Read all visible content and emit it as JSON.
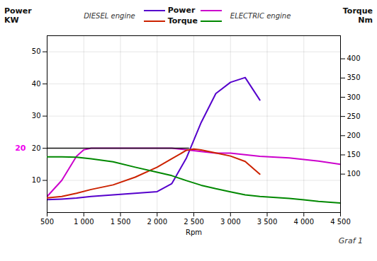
{
  "chart_data": {
    "type": "line",
    "xlabel": "Rpm",
    "ylabel": "Power\nKW",
    "y2label": "Torque\nNm",
    "xlim": [
      500,
      4500
    ],
    "xticks": [
      500,
      {
        "value": 1000,
        "label": "1 000"
      },
      {
        "value": 1500,
        "label": "1 500"
      },
      {
        "value": 2000,
        "label": "2 000"
      },
      {
        "value": 2500,
        "label": "2 500"
      },
      {
        "value": 3000,
        "label": "3 000"
      },
      {
        "value": 3500,
        "label": "3 500"
      },
      {
        "value": 4000,
        "label": "4 000"
      },
      {
        "value": 4500,
        "label": "4 500"
      }
    ],
    "ylim": [
      0,
      55
    ],
    "yticks": [
      10,
      20,
      30,
      40,
      50
    ],
    "y2lim": [
      0,
      460
    ],
    "y2ticks": [
      100,
      150,
      200,
      250,
      300,
      350,
      400
    ],
    "grid": true,
    "legend": "top",
    "series": [
      {
        "name": "Power",
        "group": "DIESEL engine",
        "color": "#5500cc",
        "axis": "y",
        "x": [
          500,
          700,
          900,
          1100,
          1400,
          1700,
          2000,
          2200,
          2400,
          2600,
          2800,
          3000,
          3200,
          3400
        ],
        "values": [
          4.0,
          4.2,
          4.5,
          5.0,
          5.5,
          6.0,
          6.5,
          9.0,
          17.0,
          28.0,
          37.0,
          40.5,
          42.0,
          35.0
        ]
      },
      {
        "name": "Torque",
        "group": "DIESEL engine",
        "color": "#cc2200",
        "axis": "y2",
        "x": [
          500,
          700,
          900,
          1100,
          1400,
          1700,
          2000,
          2200,
          2400,
          2500,
          2600,
          2800,
          3000,
          3200,
          3400
        ],
        "values": [
          38,
          42,
          50,
          60,
          72,
          92,
          118,
          140,
          162,
          165,
          163,
          155,
          147,
          133,
          100
        ]
      },
      {
        "name": "Power",
        "group": "ELECTRIC engine",
        "color": "#cc00cc",
        "axis": "y",
        "x": [
          500,
          700,
          900,
          1000,
          1100,
          1300,
          1500,
          1800,
          2000,
          2200,
          2400,
          2600,
          2800,
          3000,
          3200,
          3400,
          3800,
          4000,
          4200,
          4500
        ],
        "values": [
          5.0,
          10.0,
          17.5,
          19.5,
          20.0,
          20.0,
          20.0,
          20.0,
          20.0,
          20.0,
          19.5,
          19.0,
          18.5,
          18.5,
          18.0,
          17.5,
          17.0,
          16.5,
          16.0,
          15.0
        ]
      },
      {
        "name": "Torque",
        "group": "ELECTRIC engine",
        "color": "#008800",
        "axis": "y2",
        "x": [
          500,
          700,
          900,
          1100,
          1400,
          1700,
          2000,
          2200,
          2400,
          2600,
          2800,
          3000,
          3200,
          3400,
          3800,
          4000,
          4200,
          4500
        ],
        "values": [
          145,
          145,
          144,
          140,
          132,
          118,
          105,
          96,
          83,
          71,
          62,
          54,
          46,
          42,
          37,
          33,
          29,
          25
        ]
      }
    ],
    "reference_line": {
      "x_start": 500,
      "x_end": 2430,
      "y": 20,
      "color": "#111111"
    },
    "annotations": [
      {
        "text": "20",
        "x": 500,
        "y": 20,
        "color": "#ee00ee"
      }
    ],
    "caption": "Graf 1"
  }
}
